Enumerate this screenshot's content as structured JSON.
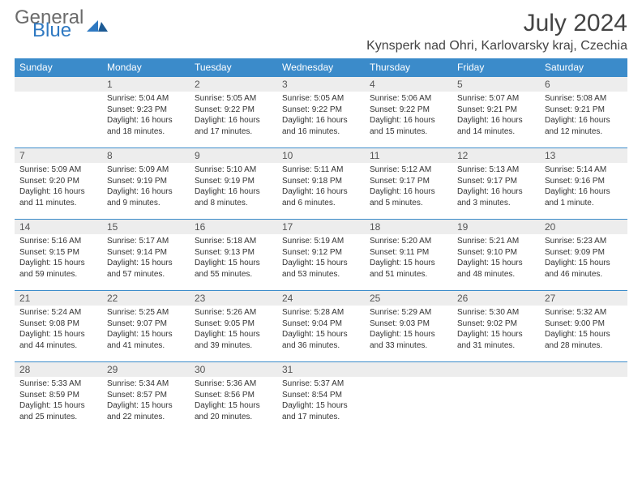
{
  "brand": {
    "general": "General",
    "blue": "Blue"
  },
  "title": "July 2024",
  "location": "Kynsperk nad Ohri, Karlovarsky kraj, Czechia",
  "colors": {
    "header_bg": "#3b8bca",
    "header_text": "#ffffff",
    "border": "#3b8bca",
    "daynum_bg": "#ededed",
    "logo_gray": "#6b6b6b",
    "logo_blue": "#2f79c2",
    "text": "#333333",
    "background": "#ffffff"
  },
  "weekdays": [
    "Sunday",
    "Monday",
    "Tuesday",
    "Wednesday",
    "Thursday",
    "Friday",
    "Saturday"
  ],
  "weeks": [
    [
      {
        "day": "",
        "lines": []
      },
      {
        "day": "1",
        "lines": [
          "Sunrise: 5:04 AM",
          "Sunset: 9:23 PM",
          "Daylight: 16 hours",
          "and 18 minutes."
        ]
      },
      {
        "day": "2",
        "lines": [
          "Sunrise: 5:05 AM",
          "Sunset: 9:22 PM",
          "Daylight: 16 hours",
          "and 17 minutes."
        ]
      },
      {
        "day": "3",
        "lines": [
          "Sunrise: 5:05 AM",
          "Sunset: 9:22 PM",
          "Daylight: 16 hours",
          "and 16 minutes."
        ]
      },
      {
        "day": "4",
        "lines": [
          "Sunrise: 5:06 AM",
          "Sunset: 9:22 PM",
          "Daylight: 16 hours",
          "and 15 minutes."
        ]
      },
      {
        "day": "5",
        "lines": [
          "Sunrise: 5:07 AM",
          "Sunset: 9:21 PM",
          "Daylight: 16 hours",
          "and 14 minutes."
        ]
      },
      {
        "day": "6",
        "lines": [
          "Sunrise: 5:08 AM",
          "Sunset: 9:21 PM",
          "Daylight: 16 hours",
          "and 12 minutes."
        ]
      }
    ],
    [
      {
        "day": "7",
        "lines": [
          "Sunrise: 5:09 AM",
          "Sunset: 9:20 PM",
          "Daylight: 16 hours",
          "and 11 minutes."
        ]
      },
      {
        "day": "8",
        "lines": [
          "Sunrise: 5:09 AM",
          "Sunset: 9:19 PM",
          "Daylight: 16 hours",
          "and 9 minutes."
        ]
      },
      {
        "day": "9",
        "lines": [
          "Sunrise: 5:10 AM",
          "Sunset: 9:19 PM",
          "Daylight: 16 hours",
          "and 8 minutes."
        ]
      },
      {
        "day": "10",
        "lines": [
          "Sunrise: 5:11 AM",
          "Sunset: 9:18 PM",
          "Daylight: 16 hours",
          "and 6 minutes."
        ]
      },
      {
        "day": "11",
        "lines": [
          "Sunrise: 5:12 AM",
          "Sunset: 9:17 PM",
          "Daylight: 16 hours",
          "and 5 minutes."
        ]
      },
      {
        "day": "12",
        "lines": [
          "Sunrise: 5:13 AM",
          "Sunset: 9:17 PM",
          "Daylight: 16 hours",
          "and 3 minutes."
        ]
      },
      {
        "day": "13",
        "lines": [
          "Sunrise: 5:14 AM",
          "Sunset: 9:16 PM",
          "Daylight: 16 hours",
          "and 1 minute."
        ]
      }
    ],
    [
      {
        "day": "14",
        "lines": [
          "Sunrise: 5:16 AM",
          "Sunset: 9:15 PM",
          "Daylight: 15 hours",
          "and 59 minutes."
        ]
      },
      {
        "day": "15",
        "lines": [
          "Sunrise: 5:17 AM",
          "Sunset: 9:14 PM",
          "Daylight: 15 hours",
          "and 57 minutes."
        ]
      },
      {
        "day": "16",
        "lines": [
          "Sunrise: 5:18 AM",
          "Sunset: 9:13 PM",
          "Daylight: 15 hours",
          "and 55 minutes."
        ]
      },
      {
        "day": "17",
        "lines": [
          "Sunrise: 5:19 AM",
          "Sunset: 9:12 PM",
          "Daylight: 15 hours",
          "and 53 minutes."
        ]
      },
      {
        "day": "18",
        "lines": [
          "Sunrise: 5:20 AM",
          "Sunset: 9:11 PM",
          "Daylight: 15 hours",
          "and 51 minutes."
        ]
      },
      {
        "day": "19",
        "lines": [
          "Sunrise: 5:21 AM",
          "Sunset: 9:10 PM",
          "Daylight: 15 hours",
          "and 48 minutes."
        ]
      },
      {
        "day": "20",
        "lines": [
          "Sunrise: 5:23 AM",
          "Sunset: 9:09 PM",
          "Daylight: 15 hours",
          "and 46 minutes."
        ]
      }
    ],
    [
      {
        "day": "21",
        "lines": [
          "Sunrise: 5:24 AM",
          "Sunset: 9:08 PM",
          "Daylight: 15 hours",
          "and 44 minutes."
        ]
      },
      {
        "day": "22",
        "lines": [
          "Sunrise: 5:25 AM",
          "Sunset: 9:07 PM",
          "Daylight: 15 hours",
          "and 41 minutes."
        ]
      },
      {
        "day": "23",
        "lines": [
          "Sunrise: 5:26 AM",
          "Sunset: 9:05 PM",
          "Daylight: 15 hours",
          "and 39 minutes."
        ]
      },
      {
        "day": "24",
        "lines": [
          "Sunrise: 5:28 AM",
          "Sunset: 9:04 PM",
          "Daylight: 15 hours",
          "and 36 minutes."
        ]
      },
      {
        "day": "25",
        "lines": [
          "Sunrise: 5:29 AM",
          "Sunset: 9:03 PM",
          "Daylight: 15 hours",
          "and 33 minutes."
        ]
      },
      {
        "day": "26",
        "lines": [
          "Sunrise: 5:30 AM",
          "Sunset: 9:02 PM",
          "Daylight: 15 hours",
          "and 31 minutes."
        ]
      },
      {
        "day": "27",
        "lines": [
          "Sunrise: 5:32 AM",
          "Sunset: 9:00 PM",
          "Daylight: 15 hours",
          "and 28 minutes."
        ]
      }
    ],
    [
      {
        "day": "28",
        "lines": [
          "Sunrise: 5:33 AM",
          "Sunset: 8:59 PM",
          "Daylight: 15 hours",
          "and 25 minutes."
        ]
      },
      {
        "day": "29",
        "lines": [
          "Sunrise: 5:34 AM",
          "Sunset: 8:57 PM",
          "Daylight: 15 hours",
          "and 22 minutes."
        ]
      },
      {
        "day": "30",
        "lines": [
          "Sunrise: 5:36 AM",
          "Sunset: 8:56 PM",
          "Daylight: 15 hours",
          "and 20 minutes."
        ]
      },
      {
        "day": "31",
        "lines": [
          "Sunrise: 5:37 AM",
          "Sunset: 8:54 PM",
          "Daylight: 15 hours",
          "and 17 minutes."
        ]
      },
      {
        "day": "",
        "lines": []
      },
      {
        "day": "",
        "lines": []
      },
      {
        "day": "",
        "lines": []
      }
    ]
  ]
}
